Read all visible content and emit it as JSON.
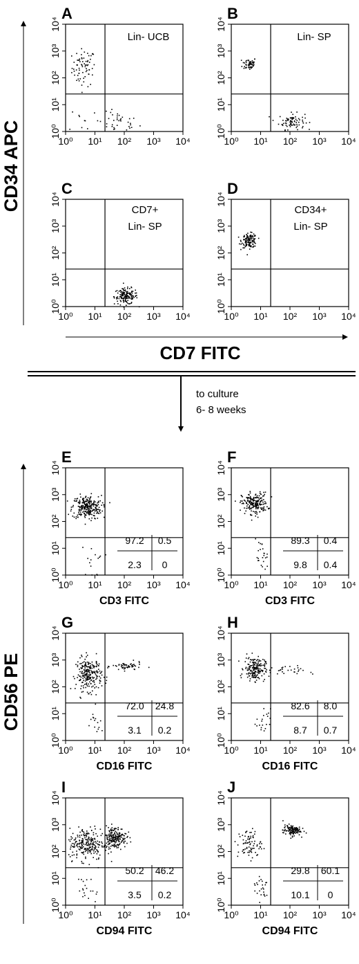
{
  "figure": {
    "top_y_axis_label": "CD34 APC",
    "top_x_axis_label": "CD7 FITC",
    "bottom_y_axis_label": "CD56 PE",
    "culture_note_line1": "to culture",
    "culture_note_line2": "6- 8 weeks"
  },
  "chart_data": [
    {
      "type": "scatter",
      "panel": "A",
      "annotation_lines": [
        "Lin- UCB"
      ],
      "xlabel": "",
      "xlim": [
        1,
        10000
      ],
      "ylim": [
        1,
        10000
      ],
      "log_scale": true,
      "x_ticks": [
        "10⁰",
        "10¹",
        "10²",
        "10³",
        "10⁴"
      ],
      "y_ticks": [
        "10⁰",
        "10¹",
        "10²",
        "10³",
        "10⁴"
      ],
      "quadrant_gate": [
        22,
        25
      ],
      "clusters": [
        {
          "center": [
            4,
            250
          ],
          "spread": [
            0.2,
            0.35
          ],
          "count": 70
        },
        {
          "center": [
            60,
            2.2
          ],
          "spread": [
            0.35,
            0.2
          ],
          "count": 35
        },
        {
          "center": [
            4,
            3
          ],
          "spread": [
            0.25,
            0.25
          ],
          "count": 10
        }
      ],
      "quadrant_values": null
    },
    {
      "type": "scatter",
      "panel": "B",
      "annotation_lines": [
        "Lin- SP"
      ],
      "xlabel": "",
      "xlim": [
        1,
        10000
      ],
      "ylim": [
        1,
        10000
      ],
      "log_scale": true,
      "x_ticks": [
        "10⁰",
        "10¹",
        "10²",
        "10³",
        "10⁴"
      ],
      "y_ticks": [
        "10⁰",
        "10¹",
        "10²",
        "10³",
        "10⁴"
      ],
      "quadrant_gate": [
        22,
        25
      ],
      "clusters": [
        {
          "center": [
            4,
            350
          ],
          "spread": [
            0.12,
            0.12
          ],
          "count": 55
        },
        {
          "center": [
            110,
            2.5
          ],
          "spread": [
            0.22,
            0.15
          ],
          "count": 80
        }
      ],
      "quadrant_values": null
    },
    {
      "type": "scatter",
      "panel": "C",
      "annotation_lines": [
        "CD7+",
        "Lin- SP"
      ],
      "xlabel": "",
      "xlim": [
        1,
        10000
      ],
      "ylim": [
        1,
        10000
      ],
      "log_scale": true,
      "x_ticks": [
        "10⁰",
        "10¹",
        "10²",
        "10³",
        "10⁴"
      ],
      "y_ticks": [
        "10⁰",
        "10¹",
        "10²",
        "10³",
        "10⁴"
      ],
      "quadrant_gate": [
        22,
        25
      ],
      "clusters": [
        {
          "center": [
            110,
            2.5
          ],
          "spread": [
            0.2,
            0.15
          ],
          "count": 150
        }
      ],
      "quadrant_values": null
    },
    {
      "type": "scatter",
      "panel": "D",
      "annotation_lines": [
        "CD34+",
        "Lin- SP"
      ],
      "xlabel": "",
      "xlim": [
        1,
        10000
      ],
      "ylim": [
        1,
        10000
      ],
      "log_scale": true,
      "x_ticks": [
        "10⁰",
        "10¹",
        "10²",
        "10³",
        "10⁴"
      ],
      "y_ticks": [
        "10⁰",
        "10¹",
        "10²",
        "10³",
        "10⁴"
      ],
      "quadrant_gate": [
        22,
        25
      ],
      "clusters": [
        {
          "center": [
            4,
            300
          ],
          "spread": [
            0.13,
            0.13
          ],
          "count": 130
        }
      ],
      "quadrant_values": null
    },
    {
      "type": "scatter",
      "panel": "E",
      "annotation_lines": [],
      "xlabel": "CD3 FITC",
      "xlim": [
        1,
        10000
      ],
      "ylim": [
        1,
        10000
      ],
      "log_scale": true,
      "x_ticks": [
        "10⁰",
        "10¹",
        "10²",
        "10³",
        "10⁴"
      ],
      "y_ticks": [
        "10⁰",
        "10¹",
        "10²",
        "10³",
        "10⁴"
      ],
      "quadrant_gate": [
        22,
        25
      ],
      "clusters": [
        {
          "center": [
            5,
            350
          ],
          "spread": [
            0.25,
            0.22
          ],
          "count": 260
        },
        {
          "center": [
            8,
            3
          ],
          "spread": [
            0.2,
            0.3
          ],
          "count": 15
        }
      ],
      "quadrant_values": {
        "upper_left": "97.2",
        "upper_right": "0.5",
        "lower_left": "2.3",
        "lower_right": "0"
      }
    },
    {
      "type": "scatter",
      "panel": "F",
      "annotation_lines": [],
      "xlabel": "CD3 FITC",
      "xlim": [
        1,
        10000
      ],
      "ylim": [
        1,
        10000
      ],
      "log_scale": true,
      "x_ticks": [
        "10⁰",
        "10¹",
        "10²",
        "10³",
        "10⁴"
      ],
      "y_ticks": [
        "10⁰",
        "10¹",
        "10²",
        "10³",
        "10⁴"
      ],
      "quadrant_gate": [
        22,
        25
      ],
      "clusters": [
        {
          "center": [
            6,
            500
          ],
          "spread": [
            0.22,
            0.2
          ],
          "count": 200
        },
        {
          "center": [
            10,
            5
          ],
          "spread": [
            0.12,
            0.3
          ],
          "count": 25
        }
      ],
      "quadrant_values": {
        "upper_left": "89.3",
        "upper_right": "0.4",
        "lower_left": "9.8",
        "lower_right": "0.4"
      }
    },
    {
      "type": "scatter",
      "panel": "G",
      "annotation_lines": [],
      "xlabel": "CD16 FITC",
      "xlim": [
        1,
        10000
      ],
      "ylim": [
        1,
        10000
      ],
      "log_scale": true,
      "x_ticks": [
        "10⁰",
        "10¹",
        "10²",
        "10³",
        "10⁴"
      ],
      "y_ticks": [
        "10⁰",
        "10¹",
        "10²",
        "10³",
        "10⁴"
      ],
      "quadrant_gate": [
        22,
        25
      ],
      "clusters": [
        {
          "center": [
            6,
            300
          ],
          "spread": [
            0.22,
            0.3
          ],
          "count": 240
        },
        {
          "center": [
            120,
            600
          ],
          "spread": [
            0.25,
            0.08
          ],
          "count": 55
        },
        {
          "center": [
            9,
            4
          ],
          "spread": [
            0.15,
            0.3
          ],
          "count": 15
        }
      ],
      "quadrant_values": {
        "upper_left": "72.0",
        "upper_right": "24.8",
        "lower_left": "3.1",
        "lower_right": "0.2"
      }
    },
    {
      "type": "scatter",
      "panel": "H",
      "annotation_lines": [],
      "xlabel": "CD16 FITC",
      "xlim": [
        1,
        10000
      ],
      "ylim": [
        1,
        10000
      ],
      "log_scale": true,
      "x_ticks": [
        "10⁰",
        "10¹",
        "10²",
        "10³",
        "10⁴"
      ],
      "y_ticks": [
        "10⁰",
        "10¹",
        "10²",
        "10³",
        "10⁴"
      ],
      "quadrant_gate": [
        22,
        25
      ],
      "clusters": [
        {
          "center": [
            6,
            500
          ],
          "spread": [
            0.18,
            0.22
          ],
          "count": 180
        },
        {
          "center": [
            60,
            400
          ],
          "spread": [
            0.35,
            0.1
          ],
          "count": 30
        },
        {
          "center": [
            12,
            5
          ],
          "spread": [
            0.12,
            0.25
          ],
          "count": 20
        }
      ],
      "quadrant_values": {
        "upper_left": "82.6",
        "upper_right": "8.0",
        "lower_left": "8.7",
        "lower_right": "0.7"
      }
    },
    {
      "type": "scatter",
      "panel": "I",
      "annotation_lines": [],
      "xlabel": "CD94 FITC",
      "xlim": [
        1,
        10000
      ],
      "ylim": [
        1,
        10000
      ],
      "log_scale": true,
      "x_ticks": [
        "10⁰",
        "10¹",
        "10²",
        "10³",
        "10⁴"
      ],
      "y_ticks": [
        "10⁰",
        "10¹",
        "10²",
        "10³",
        "10⁴"
      ],
      "quadrant_gate": [
        22,
        25
      ],
      "clusters": [
        {
          "center": [
            5,
            200
          ],
          "spread": [
            0.3,
            0.3
          ],
          "count": 230
        },
        {
          "center": [
            45,
            350
          ],
          "spread": [
            0.2,
            0.2
          ],
          "count": 200
        },
        {
          "center": [
            6,
            4
          ],
          "spread": [
            0.2,
            0.3
          ],
          "count": 20
        }
      ],
      "quadrant_values": {
        "upper_left": "50.2",
        "upper_right": "46.2",
        "lower_left": "3.5",
        "lower_right": "0.2"
      }
    },
    {
      "type": "scatter",
      "panel": "J",
      "annotation_lines": [],
      "xlabel": "CD94 FITC",
      "xlim": [
        1,
        10000
      ],
      "ylim": [
        1,
        10000
      ],
      "log_scale": true,
      "x_ticks": [
        "10⁰",
        "10¹",
        "10²",
        "10³",
        "10⁴"
      ],
      "y_ticks": [
        "10⁰",
        "10¹",
        "10²",
        "10³",
        "10⁴"
      ],
      "quadrant_gate": [
        22,
        25
      ],
      "clusters": [
        {
          "center": [
            4,
            200
          ],
          "spread": [
            0.2,
            0.28
          ],
          "count": 80
        },
        {
          "center": [
            110,
            650
          ],
          "spread": [
            0.15,
            0.1
          ],
          "count": 120
        },
        {
          "center": [
            10,
            5
          ],
          "spread": [
            0.15,
            0.25
          ],
          "count": 25
        }
      ],
      "quadrant_values": {
        "upper_left": "29.8",
        "upper_right": "60.1",
        "lower_left": "10.1",
        "lower_right": "0"
      }
    }
  ]
}
